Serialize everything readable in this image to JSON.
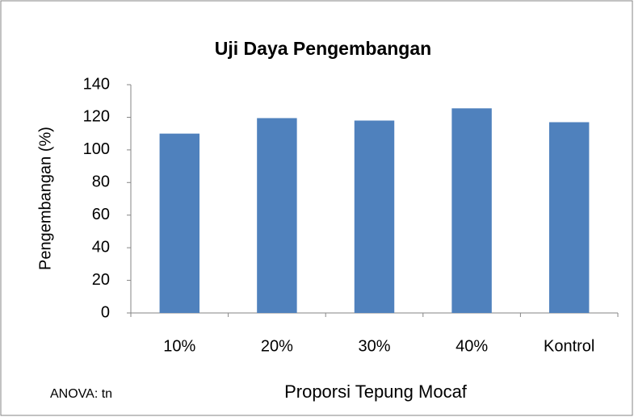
{
  "chart_data": {
    "type": "bar",
    "title": "Uji Daya Pengembangan",
    "y_label": "Pengembangan (%)",
    "x_label": "Proporsi Tepung Mocaf",
    "annotation": "ANOVA: tn",
    "categories": [
      "10%",
      "20%",
      "30%",
      "40%",
      "Kontrol"
    ],
    "values": [
      110,
      119.5,
      118,
      125.5,
      117
    ],
    "color": "#4f81bd",
    "ylim": [
      0,
      140
    ],
    "yticks": [
      0,
      20,
      40,
      60,
      80,
      100,
      120,
      140
    ],
    "grid": false
  }
}
